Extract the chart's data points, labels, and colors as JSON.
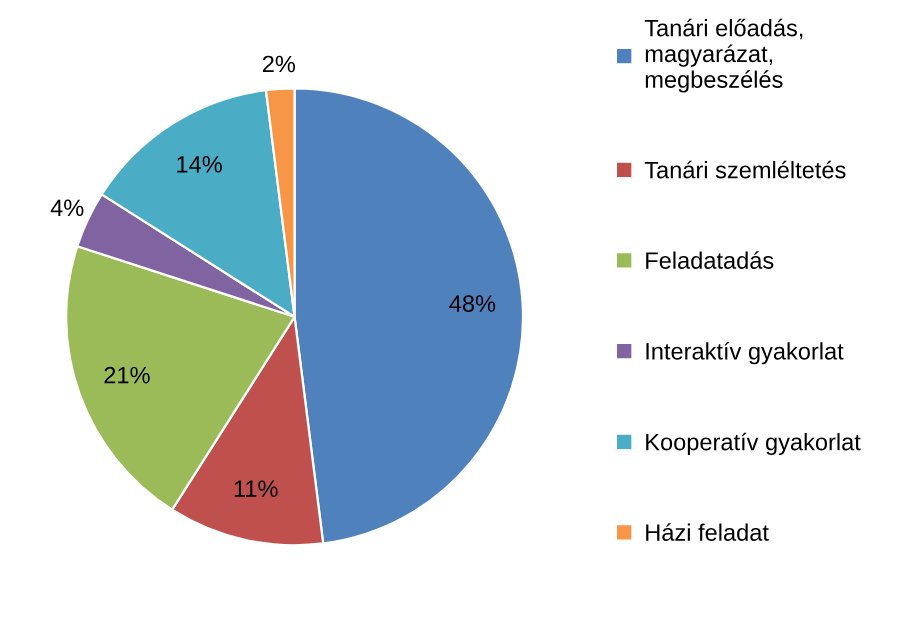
{
  "chart_data": {
    "type": "pie",
    "categories": [
      "Tanári előadás,\nmagyarázat,\nmegbeszélés",
      "Tanári szemléltetés",
      "Feladatadás",
      "Interaktív gyakorlat",
      "Kooperatív gyakorlat",
      "Házi feladat"
    ],
    "values": [
      48,
      11,
      21,
      4,
      14,
      2
    ],
    "colors": [
      "#4f81bd",
      "#c0504d",
      "#9bbb59",
      "#8064a2",
      "#4bacc6",
      "#f79646"
    ],
    "value_labels": [
      "48%",
      "11%",
      "21%",
      "4%",
      "14%",
      "2%"
    ],
    "legend": "right"
  }
}
